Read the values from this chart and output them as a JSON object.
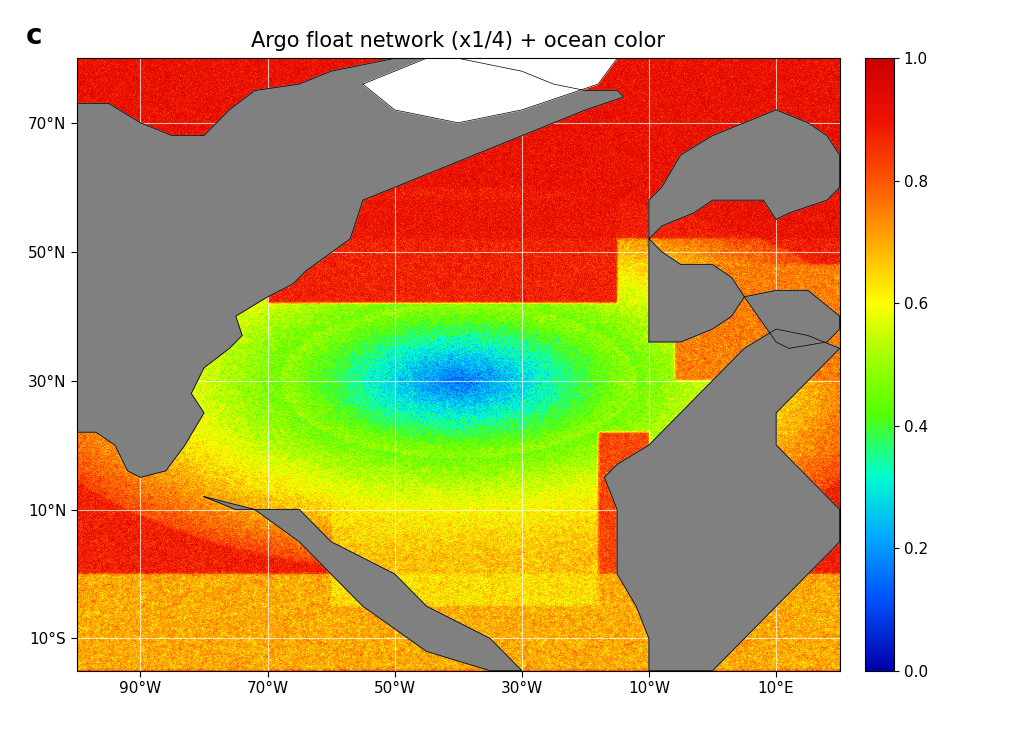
{
  "title": "Argo float network (x1/4) + ocean color",
  "panel_label": "c",
  "lon_min": -100,
  "lon_max": 20,
  "lat_min": -15,
  "lat_max": 80,
  "xticks": [
    -90,
    -70,
    -50,
    -30,
    -10,
    10
  ],
  "yticks": [
    70,
    50,
    30,
    10,
    -10
  ],
  "xtick_labels": [
    "90°W",
    "70°W",
    "50°W",
    "30°W",
    "10°W",
    "10°E"
  ],
  "ytick_labels": [
    "70°N",
    "50°N",
    "30°N",
    "10°N",
    "10°S"
  ],
  "colorbar_ticks": [
    0.0,
    0.2,
    0.4,
    0.6,
    0.8,
    1.0
  ],
  "land_color": "#808080",
  "grid_color": "white",
  "title_fontsize": 15,
  "label_fontsize": 11,
  "colorbar_fontsize": 11,
  "seed": 42
}
